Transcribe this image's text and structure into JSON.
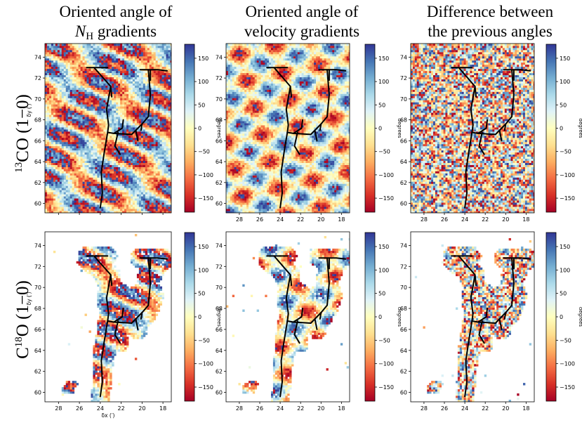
{
  "figure": {
    "column_titles": [
      [
        "Oriented angle of",
        "N",
        "H",
        " gradients"
      ],
      [
        "Oriented angle of",
        "velocity gradients"
      ],
      [
        "Difference between",
        "the previous angles"
      ]
    ],
    "row_labels": [
      {
        "sup": "13",
        "base": "CO (1−0)"
      },
      {
        "pre": "C",
        "sup": "18",
        "base": "O (1−0)"
      }
    ],
    "x_label": "δx (′)",
    "y_label": "δy (′)",
    "colorbar_label": "degrees",
    "colors": {
      "colormap": [
        "#a50026",
        "#d73027",
        "#f46d43",
        "#fdae61",
        "#fee090",
        "#ffffbf",
        "#e0f3f8",
        "#abd9e9",
        "#74add1",
        "#4575b4",
        "#313695"
      ],
      "filament": "#000000"
    }
  },
  "chart_data": [
    {
      "type": "heatmap",
      "row": "13CO (1-0)",
      "column": "Oriented angle of N_H gradients",
      "x_ticks": [
        28,
        26,
        24,
        22,
        20,
        18
      ],
      "y_ticks": [
        60,
        62,
        64,
        66,
        68,
        70,
        72,
        74
      ],
      "xlim": [
        29.3,
        17.2
      ],
      "ylim": [
        59.1,
        75.3
      ],
      "colorbar_ticks": [
        150,
        100,
        50,
        0,
        -50,
        -100,
        -150
      ],
      "colorbar_range": [
        -180,
        180
      ],
      "x_tick_labels_shown": false,
      "y_tick_labels_shown": true
    },
    {
      "type": "heatmap",
      "row": "13CO (1-0)",
      "column": "Oriented angle of velocity gradients",
      "x_ticks": [
        28,
        26,
        24,
        22,
        20,
        18
      ],
      "y_ticks": [
        60,
        62,
        64,
        66,
        68,
        70,
        72,
        74
      ],
      "xlim": [
        29.3,
        17.2
      ],
      "ylim": [
        59.1,
        75.3
      ],
      "colorbar_ticks": [
        150,
        100,
        50,
        0,
        -50,
        -100,
        -150
      ],
      "colorbar_range": [
        -180,
        180
      ],
      "x_tick_labels_shown": true,
      "y_tick_labels_shown": true
    },
    {
      "type": "heatmap",
      "row": "13CO (1-0)",
      "column": "Difference between the previous angles",
      "x_ticks": [
        28,
        26,
        24,
        22,
        20,
        18
      ],
      "y_ticks": [
        60,
        62,
        64,
        66,
        68,
        70,
        72,
        74
      ],
      "xlim": [
        29.3,
        17.2
      ],
      "ylim": [
        59.1,
        75.3
      ],
      "colorbar_ticks": [
        150,
        100,
        50,
        0,
        -50,
        -100,
        -150
      ],
      "colorbar_range": [
        -180,
        180
      ],
      "x_tick_labels_shown": true,
      "y_tick_labels_shown": true
    },
    {
      "type": "heatmap",
      "row": "C18O (1-0)",
      "column": "Oriented angle of N_H gradients",
      "x_ticks": [
        28,
        26,
        24,
        22,
        20,
        18
      ],
      "y_ticks": [
        60,
        62,
        64,
        66,
        68,
        70,
        72,
        74
      ],
      "xlim": [
        29.3,
        17.2
      ],
      "ylim": [
        59.1,
        75.3
      ],
      "colorbar_ticks": [
        150,
        100,
        50,
        0,
        -50,
        -100,
        -150
      ],
      "colorbar_range": [
        -180,
        180
      ],
      "x_tick_labels_shown": true,
      "y_tick_labels_shown": true
    },
    {
      "type": "heatmap",
      "row": "C18O (1-0)",
      "column": "Oriented angle of velocity gradients",
      "x_ticks": [
        28,
        26,
        24,
        22,
        20,
        18
      ],
      "y_ticks": [
        60,
        62,
        64,
        66,
        68,
        70,
        72,
        74
      ],
      "xlim": [
        29.3,
        17.2
      ],
      "ylim": [
        59.1,
        75.3
      ],
      "colorbar_ticks": [
        150,
        100,
        50,
        0,
        -50,
        -100,
        -150
      ],
      "colorbar_range": [
        -180,
        180
      ],
      "x_tick_labels_shown": true,
      "y_tick_labels_shown": true
    },
    {
      "type": "heatmap",
      "row": "C18O (1-0)",
      "column": "Difference between the previous angles",
      "x_ticks": [
        28,
        26,
        24,
        22,
        20,
        18
      ],
      "y_ticks": [
        60,
        62,
        64,
        66,
        68,
        70,
        72,
        74
      ],
      "xlim": [
        29.3,
        17.2
      ],
      "ylim": [
        59.1,
        75.3
      ],
      "colorbar_ticks": [
        150,
        100,
        50,
        0,
        -50,
        -100,
        -150
      ],
      "colorbar_range": [
        -180,
        180
      ],
      "x_tick_labels_shown": true,
      "y_tick_labels_shown": true
    }
  ],
  "filament_skeleton": [
    [
      [
        25.3,
        73.0
      ],
      [
        23.3,
        73.0
      ]
    ],
    [
      [
        24.6,
        73.0
      ],
      [
        23.8,
        72.1
      ],
      [
        23.0,
        71.2
      ],
      [
        22.9,
        70.2
      ]
    ],
    [
      [
        23.0,
        71.2
      ],
      [
        23.4,
        69.0
      ],
      [
        23.2,
        67.5
      ],
      [
        23.3,
        66.8
      ]
    ],
    [
      [
        23.3,
        66.8
      ],
      [
        23.6,
        65.0
      ],
      [
        23.9,
        63.0
      ],
      [
        23.8,
        61.0
      ],
      [
        24.0,
        59.6
      ]
    ],
    [
      [
        23.3,
        66.8
      ],
      [
        22.7,
        66.7
      ],
      [
        21.9,
        67.2
      ],
      [
        21.8,
        68.0
      ]
    ],
    [
      [
        22.7,
        66.7
      ],
      [
        21.0,
        66.6
      ],
      [
        20.6,
        67.0
      ],
      [
        20.4,
        66.0
      ]
    ],
    [
      [
        20.6,
        67.0
      ],
      [
        20.0,
        67.6
      ],
      [
        19.4,
        68.3
      ],
      [
        19.2,
        70.4
      ],
      [
        19.4,
        72.8
      ]
    ],
    [
      [
        20.2,
        72.8
      ],
      [
        18.5,
        72.8
      ],
      [
        17.6,
        72.7
      ]
    ],
    [
      [
        19.2,
        72.8
      ],
      [
        19.2,
        71.8
      ]
    ],
    [
      [
        20.0,
        67.6
      ],
      [
        20.1,
        67.0
      ]
    ],
    [
      [
        22.3,
        66.8
      ],
      [
        22.6,
        65.5
      ],
      [
        22.1,
        64.7
      ]
    ]
  ],
  "c18o_emission_hull": [
    [
      [
        25.8,
        72.9
      ],
      [
        24.3,
        72.8
      ],
      [
        22.7,
        71.2
      ],
      [
        22.1,
        70.5
      ],
      [
        21.2,
        70.0
      ],
      [
        20.6,
        70.3
      ],
      [
        20.3,
        71.9
      ],
      [
        20.0,
        73.1
      ],
      [
        17.8,
        73.1
      ],
      [
        17.7,
        71.8
      ],
      [
        18.3,
        70.5
      ],
      [
        17.9,
        69.3
      ],
      [
        18.5,
        67.4
      ],
      [
        19.3,
        66.3
      ],
      [
        20.5,
        65.6
      ],
      [
        21.6,
        65.4
      ],
      [
        22.4,
        64.3
      ],
      [
        22.9,
        62.1
      ],
      [
        23.1,
        60.3
      ],
      [
        23.6,
        59.6
      ],
      [
        24.6,
        59.6
      ],
      [
        24.6,
        61.5
      ],
      [
        24.5,
        63.6
      ],
      [
        24.4,
        65.8
      ],
      [
        23.7,
        67.5
      ],
      [
        23.9,
        69.5
      ],
      [
        24.5,
        70.8
      ],
      [
        25.6,
        71.7
      ],
      [
        26.3,
        72.3
      ]
    ],
    [
      [
        27.8,
        59.9
      ],
      [
        26.6,
        59.9
      ],
      [
        26.1,
        60.9
      ],
      [
        26.9,
        61.2
      ],
      [
        27.7,
        60.7
      ]
    ]
  ]
}
